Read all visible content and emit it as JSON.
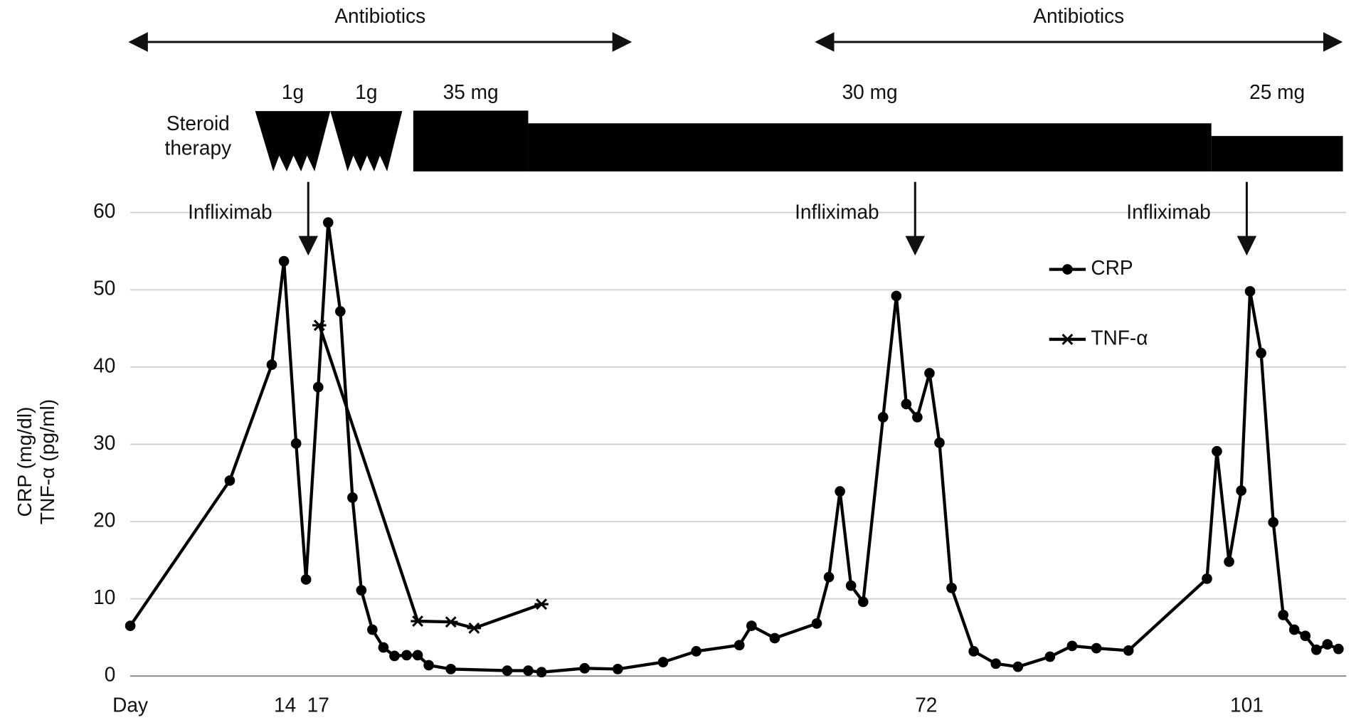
{
  "chart_data": {
    "type": "line",
    "ylabel": [
      "CRP (mg/dl)",
      "TNF-α (pg/ml)"
    ],
    "xlabel": "Day",
    "xlim": [
      0,
      110
    ],
    "xticks": [
      14,
      17,
      72,
      101
    ],
    "ylim": [
      0,
      60
    ],
    "yticks": [
      0,
      10,
      20,
      30,
      40,
      50,
      60
    ],
    "grid": true,
    "legend": "upper right",
    "series": [
      {
        "name": "CRP",
        "color": "#000000",
        "marker": "circle",
        "x": [
          0,
          9,
          12.8,
          13.9,
          15,
          15.9,
          17,
          17.9,
          19,
          20.1,
          20.9,
          21.9,
          22.9,
          23.9,
          25,
          26,
          27,
          29,
          34.1,
          36,
          37.2,
          41.1,
          44.1,
          48.2,
          51.2,
          55.1,
          56.2,
          58.3,
          62.1,
          63.2,
          64.2,
          65.2,
          66.3,
          68.1,
          69.3,
          70.2,
          71.2,
          72.3,
          73.2,
          74.3,
          76.3,
          78.3,
          80.3,
          83.2,
          85.2,
          87.4,
          90.3,
          97.4,
          98.3,
          99.4,
          100.5,
          101.3,
          102.3,
          103.4,
          104.3,
          105.3,
          106.3,
          107.3,
          108.3,
          109.3
        ],
        "values": [
          6.5,
          25.3,
          40.3,
          53.7,
          30.1,
          12.5,
          37.4,
          58.7,
          47.2,
          23.1,
          11.1,
          6,
          3.7,
          2.6,
          2.7,
          2.7,
          1.4,
          0.9,
          0.7,
          0.7,
          0.5,
          1,
          0.9,
          1.8,
          3.2,
          4,
          6.5,
          4.9,
          6.8,
          12.8,
          23.9,
          11.7,
          9.6,
          33.5,
          49.2,
          35.2,
          33.5,
          39.2,
          30.2,
          11.4,
          3.2,
          1.6,
          1.2,
          2.5,
          3.9,
          3.6,
          3.3,
          12.6,
          29.1,
          14.8,
          24,
          49.8,
          41.8,
          19.9,
          7.9,
          6,
          5.2,
          3.4,
          4.1,
          3.5
        ]
      },
      {
        "name": "TNF-α",
        "color": "#000000",
        "marker": "star",
        "x": [
          17.1,
          26,
          29,
          31.1,
          37.2
        ],
        "values": [
          45.4,
          7.1,
          7,
          6.2,
          9.3
        ]
      }
    ],
    "antibiotics": [
      {
        "label": "Antibiotics",
        "start": 0,
        "end": 45.2
      },
      {
        "label": "Antibiotics",
        "start": 62.1,
        "end": 109.5
      }
    ],
    "steroid_label": [
      "Steroid",
      "therapy"
    ],
    "pulses": [
      {
        "label": "1g",
        "start": 11.3,
        "end": 18.1
      },
      {
        "label": "1g",
        "start": 18.1,
        "end": 24.6
      }
    ],
    "doses": [
      {
        "label": "35 mg",
        "dose": 35,
        "start": 25.6,
        "end": 36
      },
      {
        "label": "30 mg",
        "dose": 30,
        "start": 36,
        "end": 97.8
      },
      {
        "label": "25 mg",
        "dose": 25,
        "start": 97.8,
        "end": 109.7
      }
    ],
    "infliximab": [
      {
        "label": "Infliximab",
        "day": 16.1
      },
      {
        "label": "Infliximab",
        "day": 71
      },
      {
        "label": "Infliximab",
        "day": 101
      }
    ]
  }
}
